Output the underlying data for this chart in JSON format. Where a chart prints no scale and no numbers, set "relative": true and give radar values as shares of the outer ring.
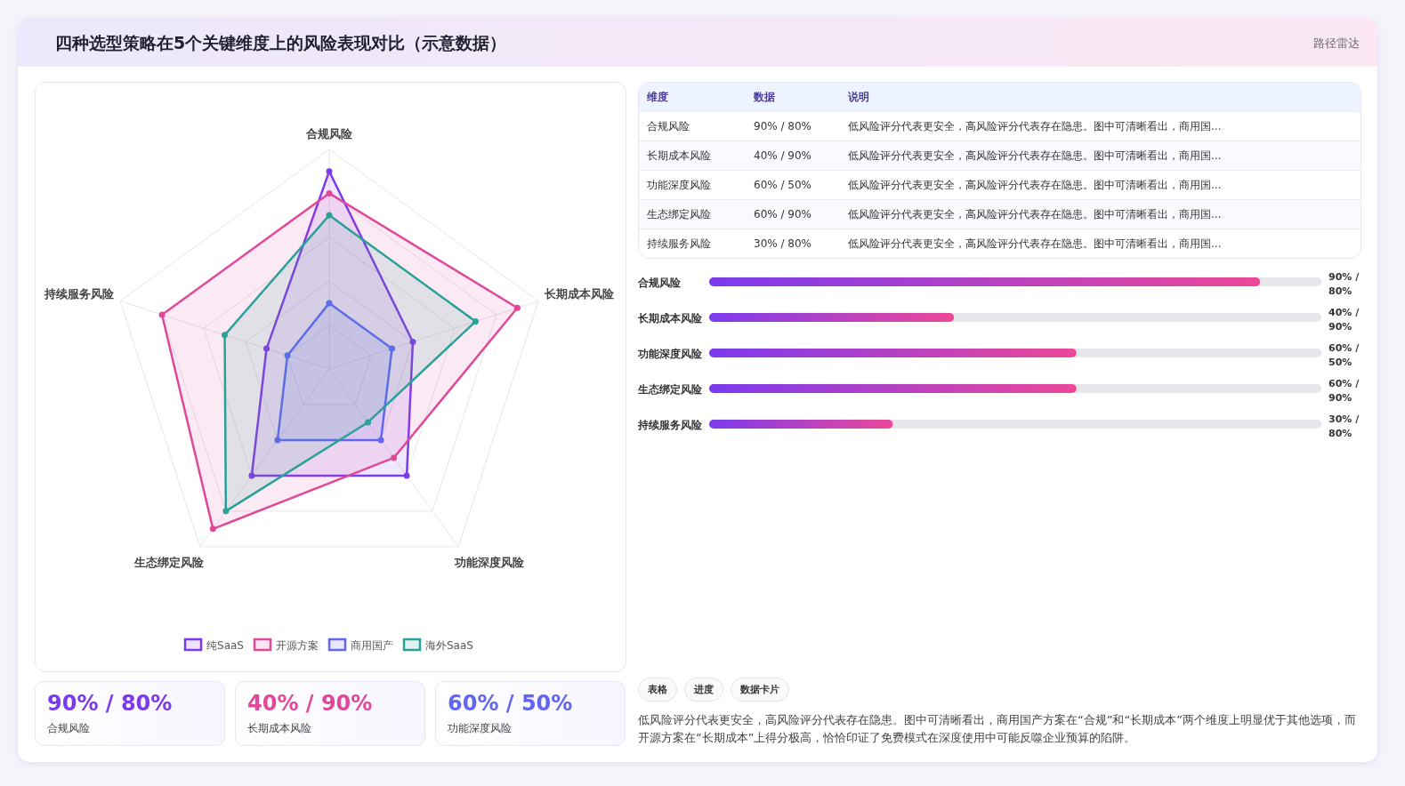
{
  "chart_data": [
    {
      "type": "other",
      "title": "四种选型策略在5个关键维度上的风险表现对比（示意数据）",
      "subtitle": "路径雷达"
    },
    {
      "type": "radar",
      "categories": [
        "合规风险",
        "长期成本风险",
        "功能深度风险",
        "生态绑定风险",
        "持续服务风险"
      ],
      "relative": true,
      "legend": "bottom",
      "marker": "circle",
      "series": [
        {
          "name": "纯SaaS",
          "color": "#7c3aed",
          "values": [
            0.9,
            0.4,
            0.6,
            0.6,
            0.3
          ]
        },
        {
          "name": "开源方案",
          "color": "#e0489a",
          "values": [
            0.8,
            0.9,
            0.5,
            0.9,
            0.8
          ]
        },
        {
          "name": "商用国产",
          "color": "#6366f1",
          "values": [
            0.3,
            0.3,
            0.4,
            0.4,
            0.2
          ]
        },
        {
          "name": "海外SaaS",
          "color": "#2aa198",
          "values": [
            0.7,
            0.7,
            0.3,
            0.8,
            0.5
          ]
        }
      ]
    },
    {
      "type": "bar",
      "orientation": "horizontal",
      "categories": [
        "合规风险",
        "长期成本风险",
        "功能深度风险",
        "生态绑定风险",
        "持续服务风险"
      ],
      "values": [
        90,
        40,
        60,
        60,
        30
      ],
      "xlim": [
        0,
        100
      ],
      "tick_labels": "y",
      "color": "#7c3aed",
      "value_labels": [
        "90% / 80%",
        "40% / 90%",
        "60% / 50%",
        "60% / 90%",
        "30% / 80%"
      ]
    },
    {
      "type": "other",
      "categories": [
        "维度",
        "数据",
        "说明"
      ],
      "annotations": [
        "合规风险",
        "90% / 80%",
        "低风险评分代表更安全，高风险评分代表存在隐患。图中可清晰看出，商用国...",
        "长期成本风险",
        "40% / 90%",
        "低风险评分代表更安全，高风险评分代表存在隐患。图中可清晰看出，商用国...",
        "功能深度风险",
        "60% / 50%",
        "低风险评分代表更安全，高风险评分代表存在隐患。图中可清晰看出，商用国...",
        "生态绑定风险",
        "60% / 90%",
        "低风险评分代表更安全，高风险评分代表存在隐患。图中可清晰看出，商用国...",
        "持续服务风险",
        "30% / 80%",
        "低风险评分代表更安全，高风险评分代表存在隐患。图中可清晰看出，商用国..."
      ]
    },
    {
      "type": "other",
      "annotations": [
        "90% / 80%",
        "合规风险",
        "40% / 90%",
        "长期成本风险",
        "60% / 50%",
        "功能深度风险"
      ],
      "colors": [
        "#7c3aed",
        "#e0489a",
        "#6366f1"
      ]
    },
    {
      "type": "other",
      "categories": [
        "表格",
        "进度",
        "数据卡片"
      ],
      "annotations": [
        "低风险评分代表更安全，高风险评分代表存在隐患。图中可清晰看出，商用国产方案在“合规”和“长期成本”两个维度上明显优于其他选项，而开源方案在“长期成本”上得分极高，恰恰印证了免费模式在深度使用中可能反噬企业预算的陷阱。"
      ]
    }
  ]
}
